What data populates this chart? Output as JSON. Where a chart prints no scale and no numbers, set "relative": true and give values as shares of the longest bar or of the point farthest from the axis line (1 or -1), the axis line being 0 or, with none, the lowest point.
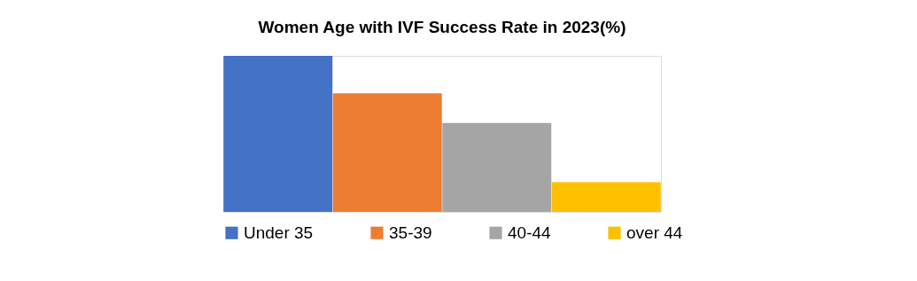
{
  "chart_data": {
    "type": "bar",
    "title": "Women Age with IVF Success Rate in 2023(%)",
    "relative": true,
    "legend": "bottom",
    "categories": [
      null
    ],
    "series": [
      {
        "name": "Under 35",
        "color": "#4472c4",
        "values": [
          1
        ]
      },
      {
        "name": "35-39",
        "color": "#ed7d31",
        "values": [
          0.76
        ]
      },
      {
        "name": "40-44",
        "color": "#a5a5a5",
        "values": [
          0.57
        ]
      },
      {
        "name": "over 44",
        "color": "#ffc000",
        "values": [
          0.19
        ]
      }
    ]
  }
}
